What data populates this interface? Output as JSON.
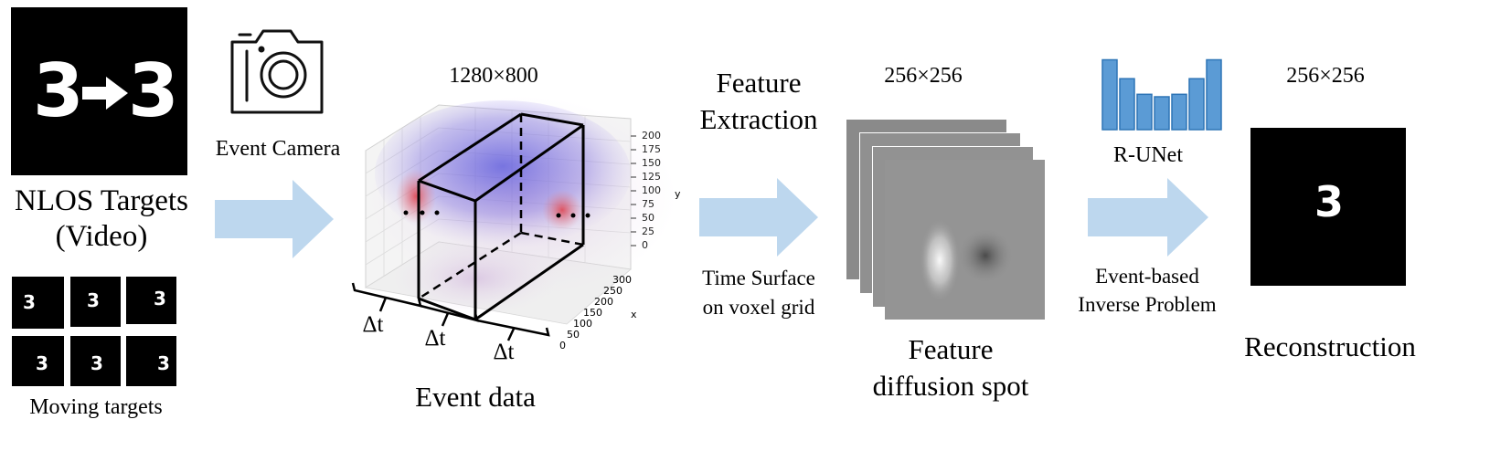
{
  "targets": {
    "main_title": "NLOS Targets",
    "main_subtitle": "(Video)",
    "hero_digit_left": "3",
    "hero_digit_right": "3",
    "frame_digit": "3",
    "frames_caption": "Moving targets"
  },
  "camera": {
    "label": "Event Camera"
  },
  "event_data": {
    "resolution": "1280×800",
    "caption": "Event data",
    "delta_t": "Δt",
    "y_axis_label": "y",
    "x_axis_label": "x",
    "y_ticks": [
      "200",
      "175",
      "150",
      "125",
      "100",
      "75",
      "50",
      "25",
      "0"
    ],
    "x_ticks": [
      "300",
      "250",
      "200",
      "150",
      "100",
      "50",
      "0"
    ]
  },
  "feature_extraction": {
    "title_line1": "Feature",
    "title_line2": "Extraction",
    "method_line1": "Time Surface",
    "method_line2": "on voxel grid"
  },
  "feature_spot": {
    "resolution": "256×256",
    "caption_line1": "Feature",
    "caption_line2": "diffusion spot"
  },
  "network": {
    "name": "R-UNet",
    "task_line1": "Event-based",
    "task_line2": "Inverse Problem",
    "bar_levels": [
      0.85,
      0.62,
      0.43,
      0.4,
      0.43,
      0.62,
      0.85
    ]
  },
  "reconstruction": {
    "resolution": "256×256",
    "caption": "Reconstruction",
    "digit": "3"
  },
  "colors": {
    "arrow": "#bdd7ee",
    "bar": "#5b9bd5",
    "bar_border": "#2e75b6",
    "events_blue": "#3b3bd9",
    "events_red": "#e0404a"
  }
}
